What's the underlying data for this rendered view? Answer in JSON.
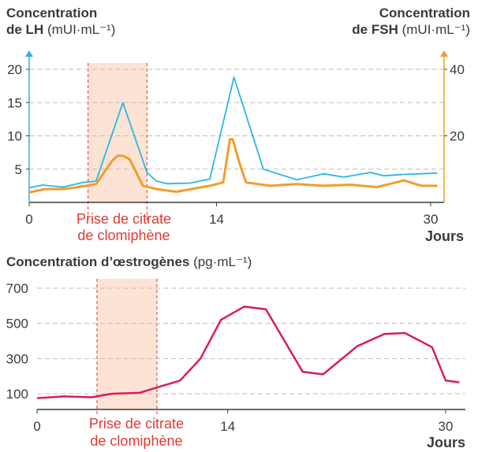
{
  "top_chart": {
    "left_label_line1": "Concentration",
    "left_label_line2_bold": "de LH",
    "left_label_line2_unit": "(mUI·mL⁻¹)",
    "right_label_line1": "Concentration",
    "right_label_line2_bold": "de FSH",
    "right_label_line2_unit": "(mUI·mL⁻¹)",
    "xlabel": "Jours",
    "band_label_line1": "Prise de citrate",
    "band_label_line2": "de clomiphène"
  },
  "bottom_chart": {
    "title_bold": "Concentration d’œstrogènes",
    "title_unit": "(pg·mL⁻¹)",
    "xlabel": "Jours",
    "band_label_line1": "Prise de citrate",
    "band_label_line2": "de clomiphène"
  },
  "colors": {
    "lh": "#29b6e6",
    "fsh": "#f39c2a",
    "estrogen": "#d81b60",
    "band": "#fde3d3",
    "band_border": "#e03a2f",
    "band_text": "#e03a2f",
    "axis": "#3a3a3a",
    "grid": "#bdbdbd"
  },
  "chart_data": [
    {
      "type": "line",
      "title": "",
      "xlabel": "Jours",
      "ylabel": "Concentration de LH (mUI·mL⁻¹)",
      "y2label": "Concentration de FSH (mUI·mL⁻¹)",
      "xlim": [
        0,
        30.5
      ],
      "ylim": [
        0,
        20
      ],
      "y2lim": [
        0,
        40
      ],
      "x_ticks": [
        0,
        14,
        30
      ],
      "y_ticks": [
        5,
        10,
        15,
        20
      ],
      "y2_ticks": [
        20,
        40
      ],
      "grid": "horizontal dashed",
      "highlight_band": {
        "x_start": 4.4,
        "x_end": 8.8,
        "label": "Prise de citrate de clomiphène"
      },
      "series": [
        {
          "name": "LH",
          "axis": "left",
          "x": [
            0,
            1,
            2.5,
            4,
            5,
            7,
            8.8,
            9.5,
            10.3,
            12,
            13.5,
            15.3,
            17.5,
            20,
            22,
            23.5,
            25.5,
            26.5,
            28,
            30.5
          ],
          "y": [
            2.2,
            2.6,
            2.3,
            3.0,
            3.2,
            15.0,
            4.5,
            3.2,
            2.8,
            2.9,
            3.5,
            18.8,
            5.0,
            3.4,
            4.3,
            3.8,
            4.5,
            4.0,
            4.2,
            4.4
          ]
        },
        {
          "name": "FSH",
          "axis": "right",
          "x": [
            0,
            1.2,
            2.5,
            3.5,
            5,
            6.2,
            6.6,
            7.0,
            7.5,
            8.5,
            9.5,
            11,
            13.5,
            14.5,
            15.0,
            15.2,
            15.7,
            16.2,
            18,
            20,
            22,
            24,
            26,
            28,
            29.3,
            30.5
          ],
          "y": [
            3,
            4,
            4,
            4.5,
            5.5,
            12.5,
            14,
            14,
            13,
            5,
            4,
            3.2,
            5,
            6,
            19,
            19,
            12,
            6,
            5,
            5.5,
            5,
            5.3,
            4.6,
            6.6,
            5,
            5
          ]
        }
      ]
    },
    {
      "type": "line",
      "title": "Concentration d’œstrogènes (pg·mL⁻¹)",
      "xlabel": "Jours",
      "ylabel": "",
      "xlim": [
        0,
        30.5
      ],
      "ylim": [
        0,
        750
      ],
      "x_ticks": [
        0,
        14,
        30
      ],
      "y_ticks": [
        100,
        300,
        500,
        700
      ],
      "grid": "horizontal dashed",
      "highlight_band": {
        "x_start": 4.4,
        "x_end": 8.8,
        "label": "Prise de citrate de clomiphène"
      },
      "series": [
        {
          "name": "Œstrogènes",
          "x": [
            0,
            2,
            4,
            5.5,
            7.5,
            9,
            10.5,
            12,
            13.5,
            15.2,
            16.8,
            19.5,
            21,
            23.5,
            25.5,
            27,
            29,
            30,
            31
          ],
          "y": [
            75,
            85,
            80,
            100,
            105,
            140,
            175,
            300,
            520,
            595,
            580,
            225,
            210,
            370,
            440,
            445,
            365,
            175,
            165
          ]
        }
      ]
    }
  ]
}
